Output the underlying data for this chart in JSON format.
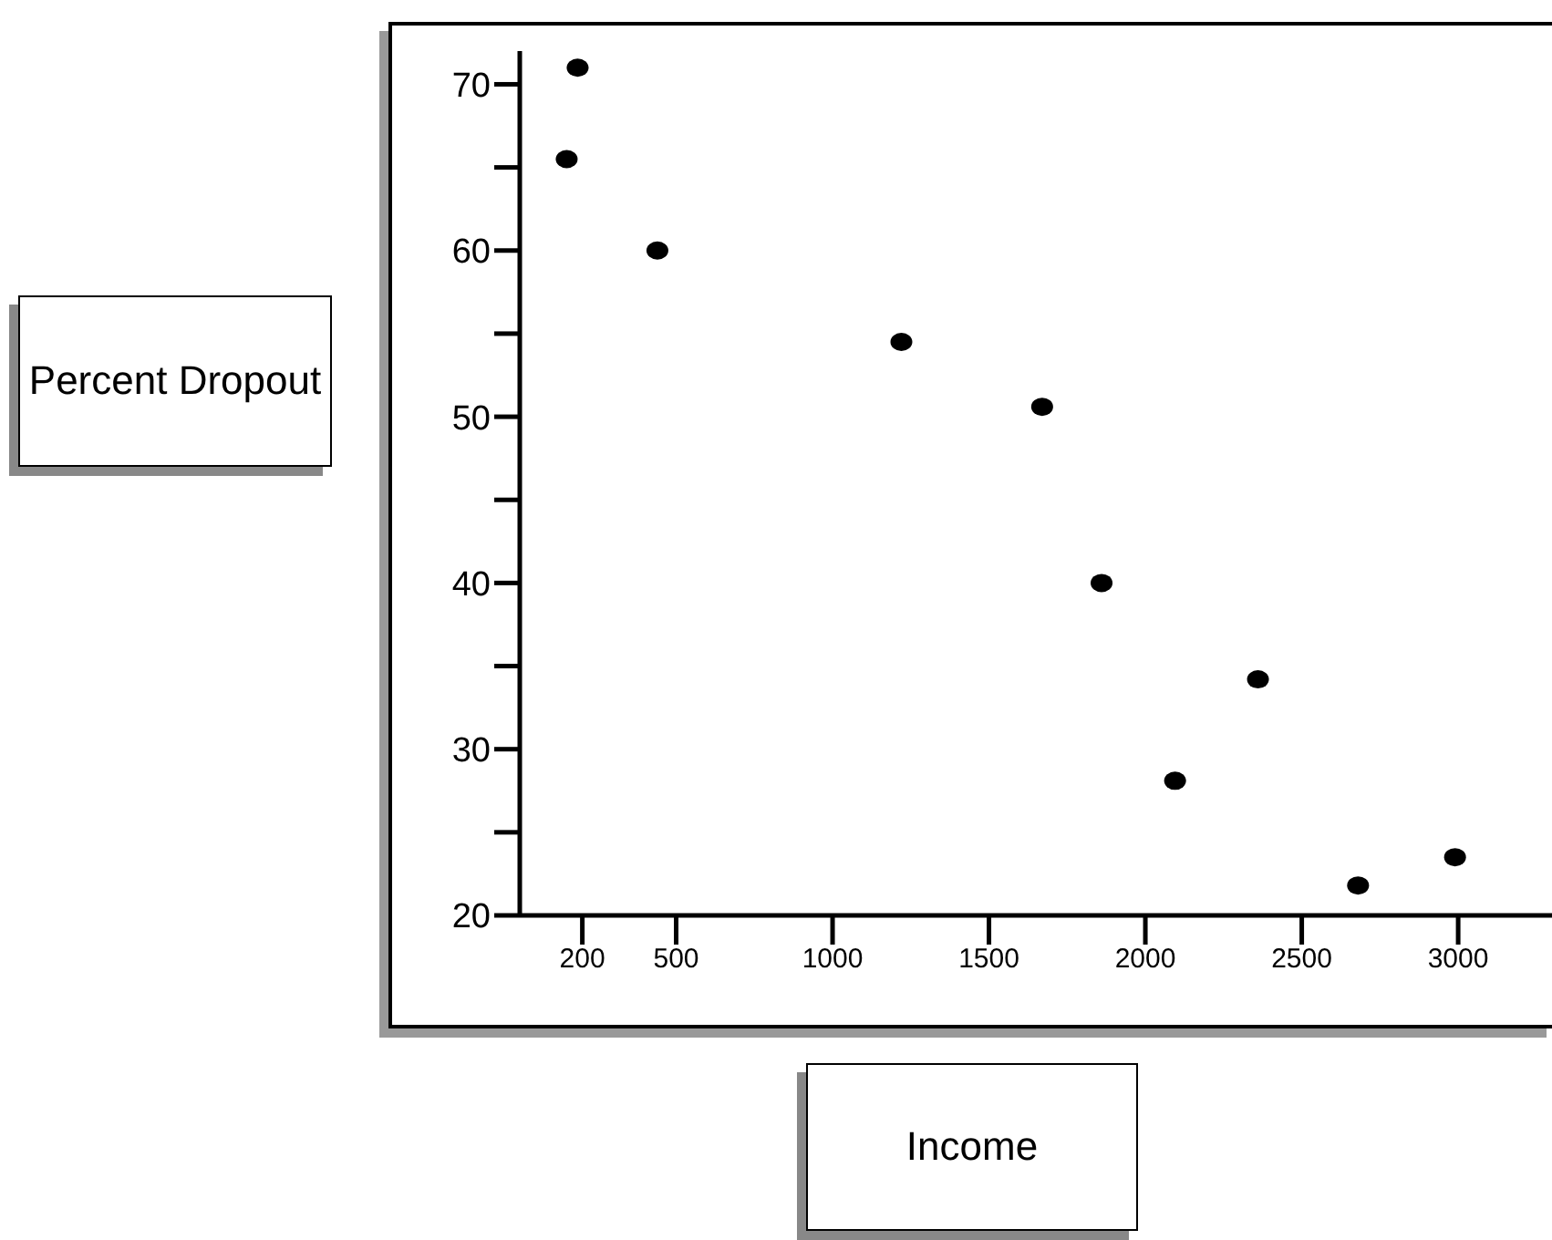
{
  "chart_data": {
    "type": "scatter",
    "xlabel": "Income",
    "ylabel": "Percent Dropout",
    "x": [
      150,
      185,
      440,
      1220,
      1670,
      1860,
      2095,
      2360,
      2680,
      2990
    ],
    "series": [
      {
        "color": "#000000",
        "values": [
          65.5,
          71,
          60,
          54.5,
          50.6,
          40,
          28.1,
          34.2,
          21.8,
          23.5
        ]
      }
    ],
    "xlim": [
      0,
      3300
    ],
    "xticks": [
      200,
      500,
      1000,
      1500,
      2000,
      2500,
      3000
    ],
    "ylim": [
      20,
      72
    ],
    "yticks": [
      20,
      {
        "value": 25,
        "label": null
      },
      30,
      {
        "value": 35,
        "label": null
      },
      40,
      {
        "value": 45,
        "label": null
      },
      50,
      {
        "value": 55,
        "label": null
      },
      60,
      {
        "value": 65,
        "label": null
      },
      70
    ],
    "grid": false,
    "legend": false,
    "marker": "circle"
  }
}
